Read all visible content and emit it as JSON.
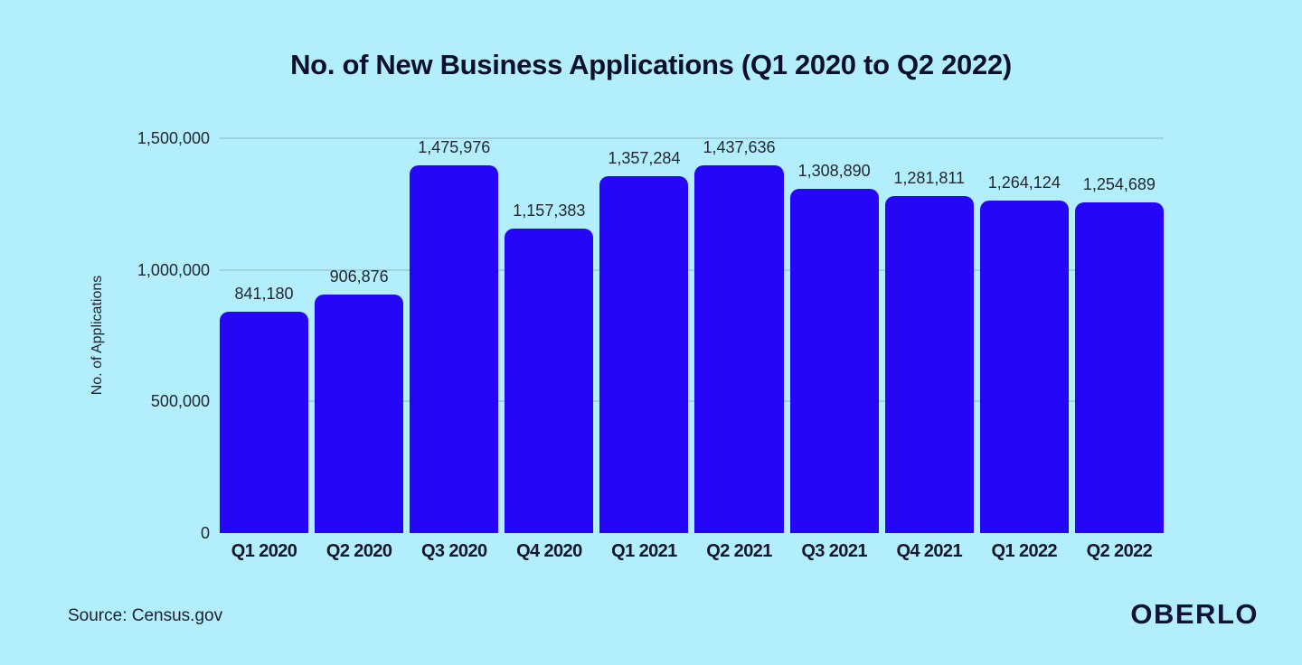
{
  "title": "No. of New Business Applications (Q1 2020 to Q2 2022)",
  "footer": {
    "source": "Source: Census.gov",
    "logo": "OBERLO"
  },
  "chart_data": {
    "type": "bar",
    "title": "No. of New Business Applications (Q1 2020 to Q2 2022)",
    "categories": [
      "Q1 2020",
      "Q2 2020",
      "Q3 2020",
      "Q4 2020",
      "Q1 2021",
      "Q2 2021",
      "Q3 2021",
      "Q4 2021",
      "Q1 2022",
      "Q2 2022"
    ],
    "values": [
      841180,
      906876,
      1475976,
      1157383,
      1357284,
      1437636,
      1308890,
      1281811,
      1264124,
      1254689
    ],
    "value_labels": [
      "841,180",
      "906,876",
      "1,475,976",
      "1,157,383",
      "1,357,284",
      "1,437,636",
      "1,308,890",
      "1,281,811",
      "1,264,124",
      "1,254,689"
    ],
    "xlabel": "",
    "ylabel": "No. of Applications",
    "ylim": [
      0,
      1500000
    ],
    "yticks": [
      0,
      500000,
      1000000,
      1500000
    ],
    "ytick_labels": [
      "0",
      "500,000",
      "1,000,000",
      "1,500,000"
    ],
    "grid": true,
    "legend": false,
    "bar_color": "#2606f7",
    "background_color": "#b2eefb",
    "grid_color": "rgba(125,155,170,0.35)",
    "text_color": "#23272f",
    "title_color": "#0c102c"
  }
}
